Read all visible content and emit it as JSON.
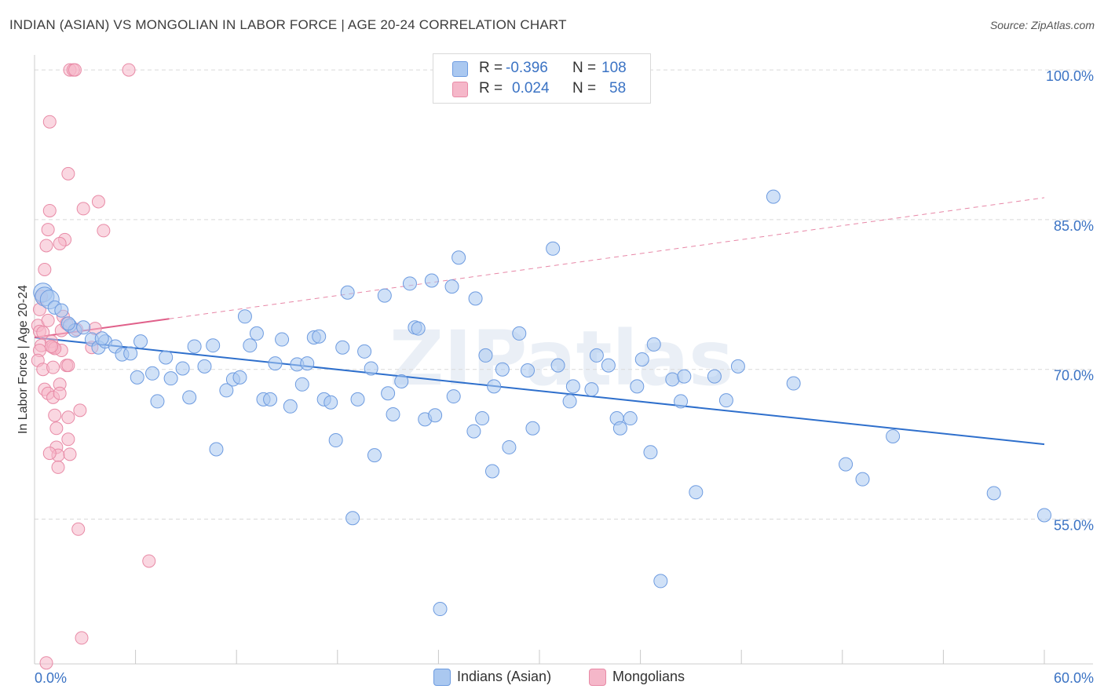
{
  "title": "INDIAN (ASIAN) VS MONGOLIAN IN LABOR FORCE | AGE 20-24 CORRELATION CHART",
  "source": "Source: ZipAtlas.com",
  "watermark": "ZIPatlas",
  "legend": {
    "rows": [
      {
        "r_label": "R =",
        "r_value": "-0.396",
        "n_label": "N =",
        "n_value": "108"
      },
      {
        "r_label": "R =",
        "r_value": "0.024",
        "n_label": "N =",
        "n_value": "58"
      }
    ]
  },
  "chart_data": {
    "type": "scatter",
    "title": "INDIAN (ASIAN) VS MONGOLIAN IN LABOR FORCE | AGE 20-24 CORRELATION CHART",
    "xlabel": "",
    "ylabel": "In Labor Force | Age 20-24",
    "xlim": [
      0,
      60
    ],
    "ylim": [
      40.5,
      101.5
    ],
    "x_tick_labels": [
      {
        "value": 0,
        "label": "0.0%"
      },
      {
        "value": 60,
        "label": "60.0%"
      }
    ],
    "y_tick_labels": [
      {
        "value": 100,
        "label": "100.0%"
      },
      {
        "value": 85,
        "label": "85.0%"
      },
      {
        "value": 70,
        "label": "70.0%"
      },
      {
        "value": 55,
        "label": "55.0%"
      }
    ],
    "gridlines": [
      100,
      85,
      70,
      55
    ],
    "colors": {
      "indian_fill": "#aac8f0",
      "indian_stroke": "#6d9be0",
      "indian_line": "#2e6fcc",
      "mongolian_fill": "#f5b7c9",
      "mongolian_stroke": "#e88aa6",
      "mongolian_line": "#e0608a",
      "axis_label": "#3b73c4",
      "grid": "#d9d9d9"
    },
    "series": [
      {
        "name": "Indians (Asian)",
        "R": -0.396,
        "N": 108,
        "trend": {
          "x": [
            0,
            60
          ],
          "y": [
            73.2,
            62.5
          ],
          "style": "solid"
        },
        "points": [
          [
            0.5,
            77.7
          ],
          [
            0.6,
            77.3
          ],
          [
            0.9,
            77.0
          ],
          [
            1.2,
            76.2
          ],
          [
            1.6,
            75.9
          ],
          [
            2.1,
            74.4
          ],
          [
            2.4,
            73.9
          ],
          [
            2.9,
            74.2
          ],
          [
            3.4,
            73.0
          ],
          [
            3.8,
            72.2
          ],
          [
            4.2,
            72.8
          ],
          [
            4.8,
            72.3
          ],
          [
            5.2,
            71.5
          ],
          [
            5.7,
            71.6
          ],
          [
            6.3,
            72.8
          ],
          [
            6.1,
            69.2
          ],
          [
            7.3,
            66.8
          ],
          [
            7.8,
            71.2
          ],
          [
            8.1,
            69.1
          ],
          [
            8.8,
            70.1
          ],
          [
            9.2,
            67.2
          ],
          [
            9.5,
            72.3
          ],
          [
            10.1,
            70.3
          ],
          [
            10.6,
            72.4
          ],
          [
            10.8,
            62.0
          ],
          [
            11.4,
            67.9
          ],
          [
            11.8,
            69.0
          ],
          [
            12.2,
            69.2
          ],
          [
            12.5,
            75.3
          ],
          [
            12.8,
            72.4
          ],
          [
            13.2,
            73.6
          ],
          [
            13.6,
            67.0
          ],
          [
            14.0,
            67.0
          ],
          [
            14.3,
            70.6
          ],
          [
            14.7,
            73.0
          ],
          [
            15.2,
            66.3
          ],
          [
            15.6,
            70.5
          ],
          [
            15.9,
            68.5
          ],
          [
            16.2,
            70.6
          ],
          [
            16.6,
            73.2
          ],
          [
            16.9,
            73.3
          ],
          [
            17.2,
            67.0
          ],
          [
            17.6,
            66.7
          ],
          [
            17.9,
            62.9
          ],
          [
            18.3,
            72.2
          ],
          [
            18.6,
            77.7
          ],
          [
            18.9,
            55.1
          ],
          [
            19.2,
            67.0
          ],
          [
            19.6,
            71.8
          ],
          [
            20.0,
            70.1
          ],
          [
            20.2,
            61.4
          ],
          [
            20.8,
            77.4
          ],
          [
            21.0,
            67.6
          ],
          [
            21.3,
            65.5
          ],
          [
            21.8,
            68.8
          ],
          [
            22.3,
            78.6
          ],
          [
            22.6,
            74.2
          ],
          [
            22.8,
            74.1
          ],
          [
            23.2,
            65.0
          ],
          [
            23.6,
            78.9
          ],
          [
            23.8,
            65.4
          ],
          [
            24.1,
            46.0
          ],
          [
            24.8,
            78.3
          ],
          [
            24.9,
            67.3
          ],
          [
            25.2,
            81.2
          ],
          [
            26.1,
            63.8
          ],
          [
            26.2,
            77.1
          ],
          [
            26.6,
            65.1
          ],
          [
            26.8,
            71.4
          ],
          [
            27.2,
            59.8
          ],
          [
            27.3,
            68.3
          ],
          [
            27.8,
            70.0
          ],
          [
            28.2,
            62.2
          ],
          [
            28.8,
            73.6
          ],
          [
            29.3,
            69.9
          ],
          [
            29.6,
            64.1
          ],
          [
            30.8,
            82.1
          ],
          [
            31.1,
            70.4
          ],
          [
            31.8,
            66.8
          ],
          [
            32.0,
            68.3
          ],
          [
            33.1,
            68.0
          ],
          [
            33.4,
            71.4
          ],
          [
            34.1,
            70.4
          ],
          [
            34.6,
            65.1
          ],
          [
            34.8,
            64.1
          ],
          [
            35.4,
            65.1
          ],
          [
            35.8,
            68.3
          ],
          [
            36.1,
            71.0
          ],
          [
            36.6,
            61.7
          ],
          [
            36.8,
            72.5
          ],
          [
            37.2,
            48.8
          ],
          [
            37.9,
            69.0
          ],
          [
            38.4,
            66.8
          ],
          [
            38.6,
            69.3
          ],
          [
            39.3,
            57.7
          ],
          [
            40.4,
            69.3
          ],
          [
            41.1,
            66.9
          ],
          [
            41.8,
            70.3
          ],
          [
            43.9,
            87.3
          ],
          [
            45.1,
            68.6
          ],
          [
            48.2,
            60.5
          ],
          [
            49.2,
            59.0
          ],
          [
            51.0,
            63.3
          ],
          [
            57.0,
            57.6
          ],
          [
            60.0,
            55.4
          ],
          [
            2.0,
            74.6
          ],
          [
            4.0,
            73.1
          ],
          [
            7.0,
            69.6
          ]
        ]
      },
      {
        "name": "Mongolians",
        "R": 0.024,
        "N": 58,
        "trend": {
          "x": [
            0,
            60
          ],
          "y": [
            73.2,
            87.2
          ],
          "style": "solid-to-dashed",
          "solid_until_x": 8.0
        },
        "points": [
          [
            0.3,
            76.0
          ],
          [
            0.2,
            74.4
          ],
          [
            0.3,
            73.8
          ],
          [
            0.4,
            72.4
          ],
          [
            0.3,
            71.9
          ],
          [
            0.2,
            70.9
          ],
          [
            0.5,
            70.0
          ],
          [
            0.6,
            68.0
          ],
          [
            0.8,
            67.6
          ],
          [
            0.4,
            77.3
          ],
          [
            0.6,
            80.0
          ],
          [
            0.7,
            82.4
          ],
          [
            0.8,
            84.0
          ],
          [
            0.9,
            85.9
          ],
          [
            0.9,
            94.8
          ],
          [
            1.0,
            72.8
          ],
          [
            1.1,
            72.2
          ],
          [
            1.1,
            70.2
          ],
          [
            1.1,
            67.2
          ],
          [
            1.2,
            65.4
          ],
          [
            1.3,
            64.1
          ],
          [
            1.3,
            62.2
          ],
          [
            1.4,
            61.4
          ],
          [
            1.4,
            60.2
          ],
          [
            1.5,
            68.5
          ],
          [
            1.6,
            73.9
          ],
          [
            1.6,
            71.9
          ],
          [
            1.7,
            75.3
          ],
          [
            1.8,
            83.0
          ],
          [
            1.9,
            70.4
          ],
          [
            2.0,
            65.2
          ],
          [
            2.0,
            63.0
          ],
          [
            2.1,
            61.5
          ],
          [
            2.1,
            100.0
          ],
          [
            2.3,
            100.0
          ],
          [
            2.4,
            100.0
          ],
          [
            2.0,
            70.4
          ],
          [
            1.9,
            74.6
          ],
          [
            2.0,
            89.6
          ],
          [
            2.5,
            74.0
          ],
          [
            2.6,
            54.0
          ],
          [
            2.7,
            65.9
          ],
          [
            2.8,
            43.1
          ],
          [
            2.9,
            86.1
          ],
          [
            3.4,
            72.2
          ],
          [
            3.6,
            74.1
          ],
          [
            3.8,
            86.8
          ],
          [
            4.1,
            83.9
          ],
          [
            5.6,
            100.0
          ],
          [
            6.8,
            50.8
          ],
          [
            1.5,
            82.6
          ],
          [
            1.5,
            67.6
          ],
          [
            0.8,
            74.9
          ],
          [
            1.2,
            72.1
          ],
          [
            0.7,
            40.6
          ],
          [
            0.9,
            61.6
          ],
          [
            1.0,
            72.3
          ],
          [
            0.5,
            73.7
          ]
        ]
      }
    ]
  },
  "bottom_legend": [
    {
      "label": "Indians (Asian)"
    },
    {
      "label": "Mongolians"
    }
  ]
}
